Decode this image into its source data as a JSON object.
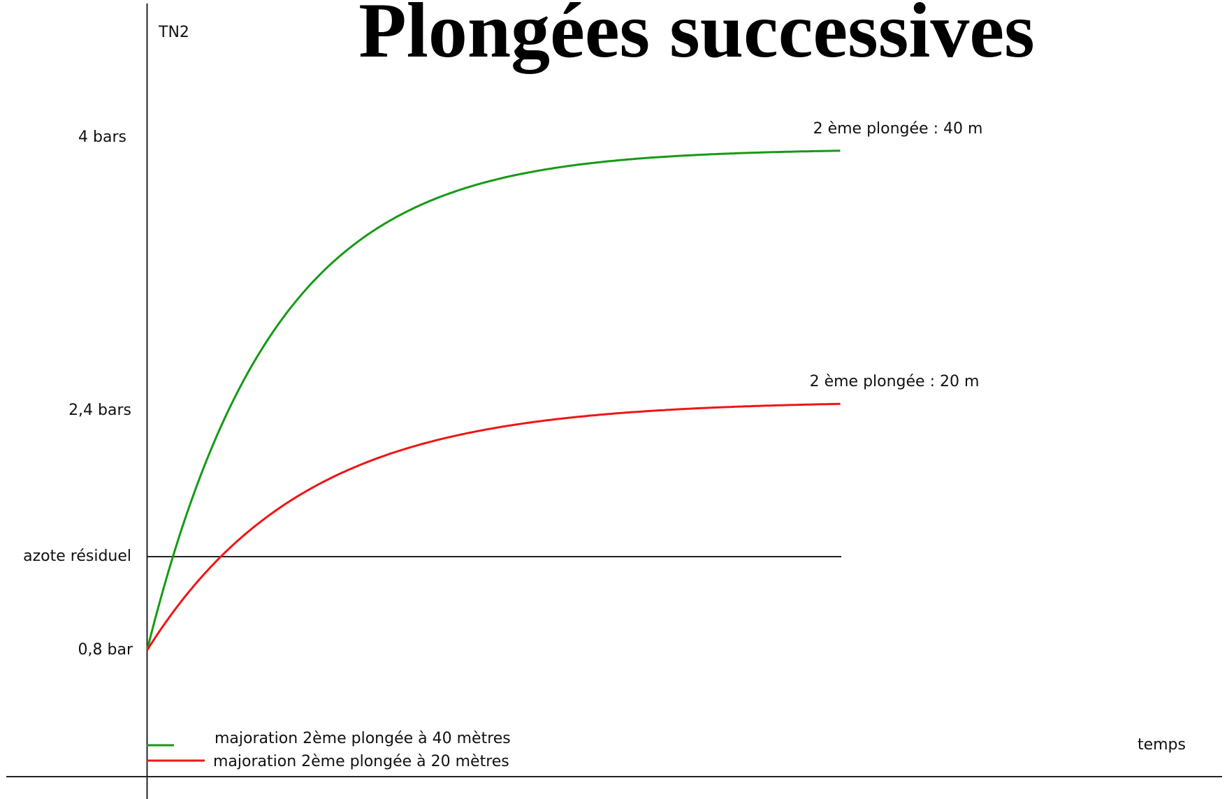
{
  "title": "Plongées successives",
  "y_axis_label": "TN2",
  "x_axis_label": "temps",
  "y_labels": [
    "4 bars",
    "2,4 bars",
    "azote résiduel",
    "0,8 bar"
  ],
  "curves": [
    {
      "label": "2 ème plongée : 40 m",
      "color": "#159a15"
    },
    {
      "label": "2 ème plongée : 20 m",
      "color": "#f01515"
    }
  ],
  "legend": [
    "majoration 2ème plongée à 40 mètres",
    "majoration 2ème plongée à 20 mètres"
  ]
}
